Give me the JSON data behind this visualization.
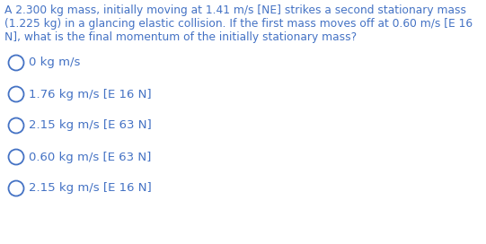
{
  "question_line1": "A 2.300 kg mass, initially moving at 1.41 m/s [NE] strikes a second stationary mass",
  "question_line2": "(1.225 kg) in a glancing elastic collision. If the first mass moves off at 0.60 m/s [E 16",
  "question_line3": "N], what is the final momentum of the initially stationary mass?",
  "options": [
    "0 kg m/s",
    "1.76 kg m/s [E 16 N]",
    "2.15 kg m/s [E 63 N]",
    "0.60 kg m/s [E 63 N]",
    "2.15 kg m/s [E 16 N]"
  ],
  "text_color": "#4472c4",
  "bg_color": "#ffffff",
  "question_fontsize": 8.8,
  "option_fontsize": 9.5,
  "fig_width": 5.41,
  "fig_height": 2.72,
  "dpi": 100
}
